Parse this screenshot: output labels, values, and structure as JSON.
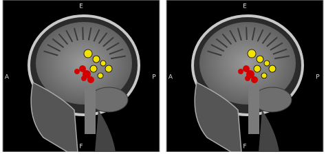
{
  "panels": [
    {
      "labels": {
        "top": "E",
        "left": "A",
        "right": "P",
        "bottom": "F"
      }
    },
    {
      "labels": {
        "top": "E",
        "left": "A",
        "right": "P",
        "bottom": "F"
      }
    }
  ]
}
